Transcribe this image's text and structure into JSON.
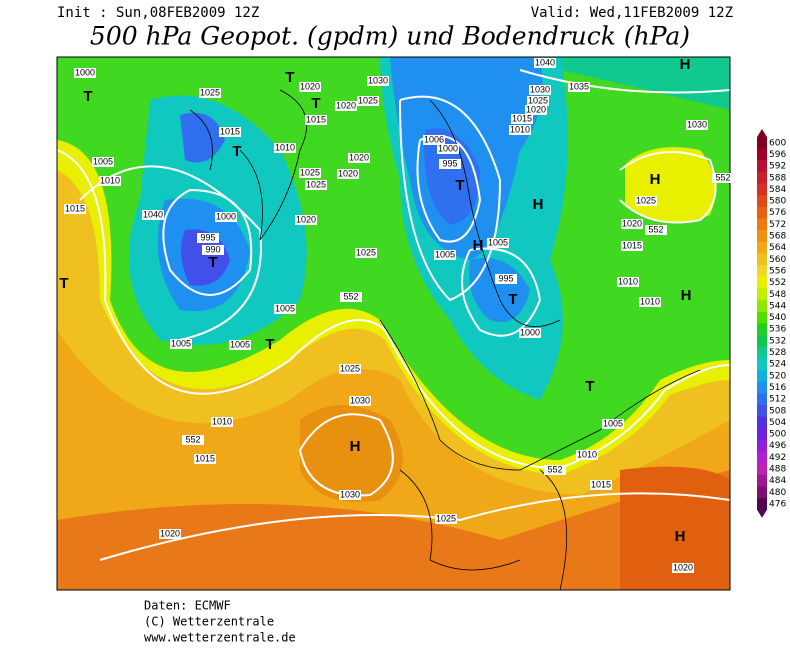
{
  "header": {
    "init": "Init : Sun,08FEB2009 12Z",
    "valid": "Valid: Wed,11FEB2009 12Z",
    "title": "500 hPa Geopot. (gpdm) und Bodendruck (hPa)"
  },
  "legend": [
    {
      "value": 600,
      "color": "#800020"
    },
    {
      "value": 596,
      "color": "#a00028"
    },
    {
      "value": 592,
      "color": "#b81030"
    },
    {
      "value": 588,
      "color": "#c82028"
    },
    {
      "value": 584,
      "color": "#d83020"
    },
    {
      "value": 580,
      "color": "#e04818"
    },
    {
      "value": 576,
      "color": "#e86010"
    },
    {
      "value": 572,
      "color": "#f07810"
    },
    {
      "value": 568,
      "color": "#f09010"
    },
    {
      "value": 564,
      "color": "#f0a818"
    },
    {
      "value": 560,
      "color": "#f0c020"
    },
    {
      "value": 556,
      "color": "#f0d828"
    },
    {
      "value": 552,
      "color": "#e8f000"
    },
    {
      "value": 548,
      "color": "#c0f000"
    },
    {
      "value": 544,
      "color": "#90e800"
    },
    {
      "value": 540,
      "color": "#50e000"
    },
    {
      "value": 536,
      "color": "#20d020"
    },
    {
      "value": 532,
      "color": "#10c850"
    },
    {
      "value": 528,
      "color": "#10c890"
    },
    {
      "value": 524,
      "color": "#10c8c0"
    },
    {
      "value": 520,
      "color": "#10b0e0"
    },
    {
      "value": 516,
      "color": "#2090f0"
    },
    {
      "value": 512,
      "color": "#3070f0"
    },
    {
      "value": 508,
      "color": "#4050e8"
    },
    {
      "value": 504,
      "color": "#5030e0"
    },
    {
      "value": 500,
      "color": "#7020e0"
    },
    {
      "value": 496,
      "color": "#9020e0"
    },
    {
      "value": 492,
      "color": "#b020d0"
    },
    {
      "value": 488,
      "color": "#c020b0"
    },
    {
      "value": 484,
      "color": "#a01890"
    },
    {
      "value": 480,
      "color": "#801070"
    },
    {
      "value": 476,
      "color": "#500850"
    }
  ],
  "map_labels": [
    "1000",
    "T",
    "1025",
    "1015",
    "T",
    "1005",
    "1010",
    "1015",
    "1040",
    "1000",
    "995",
    "990",
    "T",
    "1005",
    "1005",
    "1005",
    "T",
    "T",
    "1010",
    "552",
    "1015",
    "1020",
    "1025",
    "1030",
    "H",
    "1030",
    "1025",
    "552",
    "1020",
    "1015",
    "1010",
    "1025",
    "1025",
    "1020",
    "1025",
    "1020",
    "1020",
    "1025",
    "1020",
    "1030",
    "T",
    "T",
    "1006",
    "1000",
    "995",
    "T",
    "1005",
    "H",
    "1005",
    "995",
    "T",
    "1000",
    "H",
    "1040",
    "1030",
    "1025",
    "1020",
    "1015",
    "1010",
    "1035",
    "H",
    "1030",
    "H",
    "1025",
    "1020",
    "552",
    "1015",
    "1010",
    "1010",
    "H",
    "T",
    "1005",
    "1010",
    "552",
    "1015",
    "H",
    "1020",
    "552"
  ],
  "footer": [
    "Daten: ECMWF",
    "(C) Wetterzentrale",
    "www.wetterzentrale.de"
  ]
}
